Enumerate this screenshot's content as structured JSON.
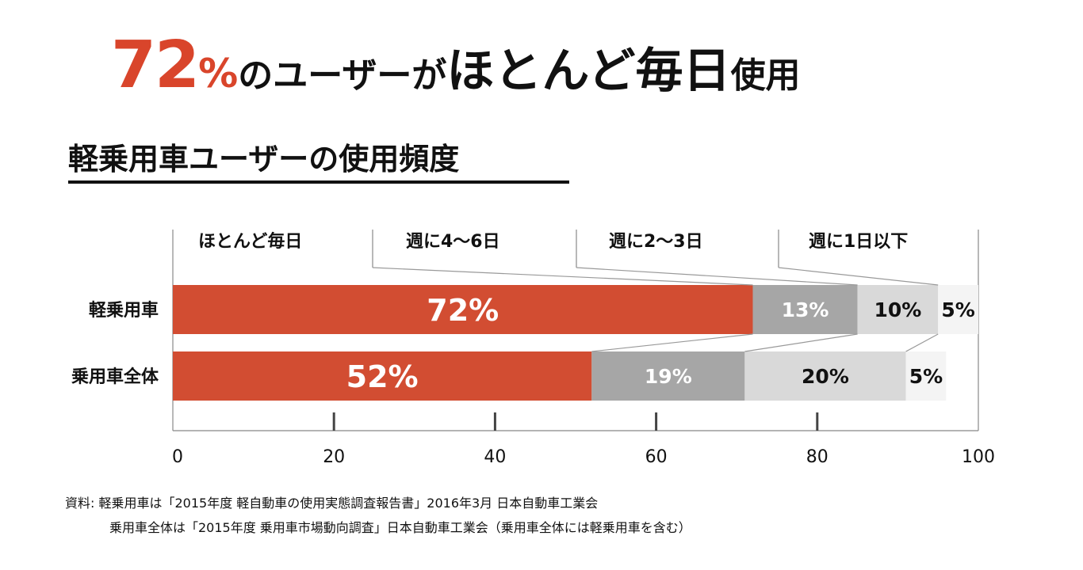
{
  "headline": {
    "percent": "72",
    "percent_sign": "%",
    "text1": "のユーザーが",
    "text2": "ほとんど毎日",
    "text3": "使用"
  },
  "subtitle": "軽乗用車ユーザーの使用頻度",
  "chart_data": {
    "type": "bar",
    "orientation": "horizontal",
    "stacked": true,
    "title": "",
    "categories": [
      "軽乗用車",
      "乗用車全体"
    ],
    "series": [
      {
        "name": "ほとんど毎日",
        "values": [
          72,
          52
        ],
        "color": "#d24d32",
        "labels": [
          "72%",
          "52%"
        ],
        "label_color": "#ffffff"
      },
      {
        "name": "週に4〜6日",
        "values": [
          13,
          19
        ],
        "color": "#a6a6a6",
        "labels": [
          "13%",
          "19%"
        ],
        "label_color": "#ffffff"
      },
      {
        "name": "週に2〜3日",
        "values": [
          10,
          20
        ],
        "color": "#d9d9d9",
        "labels": [
          "10%",
          "20%"
        ],
        "label_color": "#111111"
      },
      {
        "name": "週に1日以下",
        "values": [
          5,
          5
        ],
        "color": "#f4f4f4",
        "labels": [
          "5%",
          "5%"
        ],
        "label_color": "#111111"
      }
    ],
    "xlim": [
      0,
      100
    ],
    "xticks": [
      "0",
      "20",
      "40",
      "60",
      "80",
      "100"
    ],
    "legend": "top"
  },
  "source": {
    "line1": "資料: 軽乗用車は「2015年度 軽自動車の使用実態調査報告書」2016年3月 日本自動車工業会",
    "line2": "乗用車全体は「2015年度 乗用車市場動向調査」日本自動車工業会（乗用車全体には軽乗用車を含む）"
  }
}
